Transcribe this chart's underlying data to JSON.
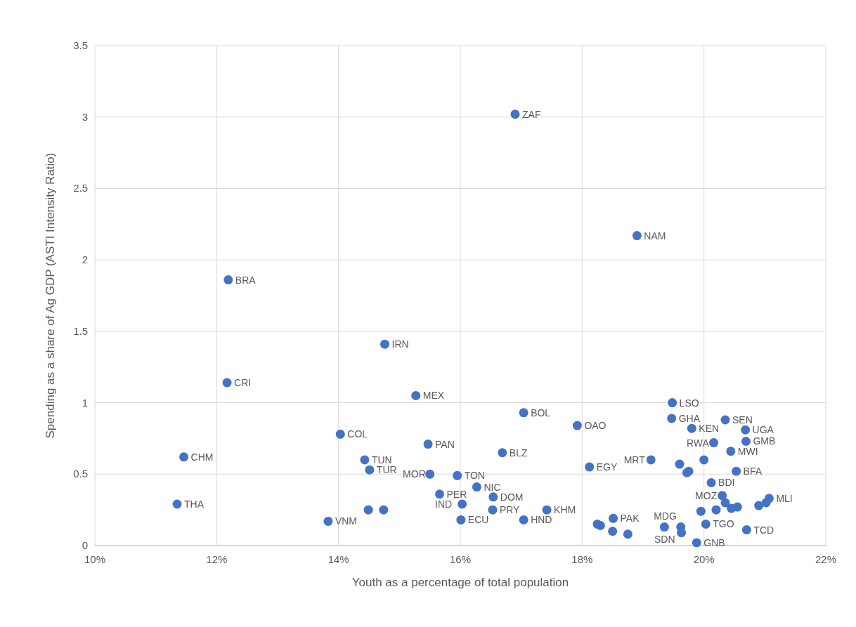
{
  "chart_data": {
    "type": "scatter",
    "xlabel": "Youth as a percentage of total population",
    "ylabel": "Spending as a share of Ag GDP (ASTI Intensity Ratio)",
    "xlim": [
      10,
      22
    ],
    "xticks": [
      {
        "value": 10,
        "label": "10%"
      },
      {
        "value": 12,
        "label": "12%"
      },
      {
        "value": 14,
        "label": "14%"
      },
      {
        "value": 16,
        "label": "16%"
      },
      {
        "value": 18,
        "label": "18%"
      },
      {
        "value": 20,
        "label": "20%"
      },
      {
        "value": 22,
        "label": "22%"
      }
    ],
    "ylim": [
      0,
      3.5
    ],
    "yticks": [
      0,
      0.5,
      1,
      1.5,
      2,
      2.5,
      3,
      3.5
    ],
    "grid": true,
    "marker": "circle",
    "series": [
      {
        "color": "#4472c4",
        "x": [
          16.9,
          18.9,
          12.19,
          14.76,
          12.17,
          15.27,
          19.48,
          17.04,
          17.92,
          19.47,
          20.35,
          19.8,
          20.68,
          14.03,
          20.16,
          20.69,
          20.44,
          15.47,
          16.69,
          11.46,
          14.43,
          19.13,
          18.12,
          14.51,
          20.53,
          15.5,
          15.95,
          20.12,
          16.27,
          15.66,
          16.54,
          20.3,
          21.07,
          11.35,
          16.03,
          16.53,
          17.42,
          14.49,
          14.74,
          17.04,
          16.01,
          13.83,
          18.51,
          20.03,
          20.7,
          19.62,
          19.63,
          19.88,
          19.6,
          20.0,
          19.75,
          19.72,
          19.95,
          20.2,
          20.45,
          20.55,
          20.9,
          21.02,
          20.35,
          18.25,
          18.3,
          18.5,
          18.75,
          19.35
        ],
        "values": [
          3.02,
          2.17,
          1.86,
          1.41,
          1.14,
          1.05,
          1.0,
          0.93,
          0.84,
          0.89,
          0.88,
          0.82,
          0.81,
          0.78,
          0.72,
          0.73,
          0.66,
          0.71,
          0.65,
          0.62,
          0.6,
          0.6,
          0.55,
          0.53,
          0.52,
          0.5,
          0.49,
          0.44,
          0.41,
          0.36,
          0.34,
          0.35,
          0.33,
          0.29,
          0.29,
          0.25,
          0.25,
          0.25,
          0.25,
          0.18,
          0.18,
          0.17,
          0.19,
          0.15,
          0.11,
          0.13,
          0.09,
          0.02,
          0.57,
          0.6,
          0.52,
          0.51,
          0.24,
          0.25,
          0.26,
          0.27,
          0.28,
          0.3,
          0.3,
          0.15,
          0.14,
          0.1,
          0.08,
          0.13
        ]
      }
    ],
    "annotations": [
      {
        "text": "ZAF",
        "x": 16.9,
        "y": 3.02
      },
      {
        "text": "NAM",
        "x": 18.9,
        "y": 2.17
      },
      {
        "text": "BRA",
        "x": 12.19,
        "y": 1.86
      },
      {
        "text": "IRN",
        "x": 14.76,
        "y": 1.41
      },
      {
        "text": "CRI",
        "x": 12.17,
        "y": 1.14
      },
      {
        "text": "MEX",
        "x": 15.27,
        "y": 1.05
      },
      {
        "text": "LSO",
        "x": 19.48,
        "y": 1.0
      },
      {
        "text": "BOL",
        "x": 17.04,
        "y": 0.93
      },
      {
        "text": "OAO",
        "x": 17.92,
        "y": 0.84
      },
      {
        "text": "GHA",
        "x": 19.47,
        "y": 0.89
      },
      {
        "text": "SEN",
        "x": 20.35,
        "y": 0.88
      },
      {
        "text": "KEN",
        "x": 19.8,
        "y": 0.82
      },
      {
        "text": "UGA",
        "x": 20.68,
        "y": 0.81
      },
      {
        "text": "COL",
        "x": 14.03,
        "y": 0.78
      },
      {
        "text": "RWA",
        "x": 20.16,
        "y": 0.72
      },
      {
        "text": "GMB",
        "x": 20.69,
        "y": 0.73
      },
      {
        "text": "MWI",
        "x": 20.44,
        "y": 0.66
      },
      {
        "text": "PAN",
        "x": 15.47,
        "y": 0.71
      },
      {
        "text": "BLZ",
        "x": 16.69,
        "y": 0.65
      },
      {
        "text": "CHM",
        "x": 11.46,
        "y": 0.62
      },
      {
        "text": "TUN",
        "x": 14.43,
        "y": 0.6
      },
      {
        "text": "MRT",
        "x": 19.13,
        "y": 0.6
      },
      {
        "text": "EGY",
        "x": 18.12,
        "y": 0.55
      },
      {
        "text": "TUR",
        "x": 14.51,
        "y": 0.53
      },
      {
        "text": "BFA",
        "x": 20.53,
        "y": 0.52
      },
      {
        "text": "MOR",
        "x": 15.5,
        "y": 0.5
      },
      {
        "text": "TON",
        "x": 15.95,
        "y": 0.49
      },
      {
        "text": "BDI",
        "x": 20.12,
        "y": 0.44
      },
      {
        "text": "NIC",
        "x": 16.27,
        "y": 0.41
      },
      {
        "text": "PER",
        "x": 15.66,
        "y": 0.36
      },
      {
        "text": "DOM",
        "x": 16.54,
        "y": 0.34
      },
      {
        "text": "MOZ",
        "x": 20.3,
        "y": 0.35
      },
      {
        "text": "MLI",
        "x": 21.07,
        "y": 0.33
      },
      {
        "text": "THA",
        "x": 11.35,
        "y": 0.29
      },
      {
        "text": "IND",
        "x": 16.03,
        "y": 0.29
      },
      {
        "text": "PRY",
        "x": 16.53,
        "y": 0.25
      },
      {
        "text": "KHM",
        "x": 17.42,
        "y": 0.25
      },
      {
        "text": "HND",
        "x": 17.04,
        "y": 0.18
      },
      {
        "text": "ECU",
        "x": 16.01,
        "y": 0.18
      },
      {
        "text": "VNM",
        "x": 13.83,
        "y": 0.17
      },
      {
        "text": "PAK",
        "x": 18.51,
        "y": 0.19
      },
      {
        "text": "TGO",
        "x": 20.03,
        "y": 0.15
      },
      {
        "text": "TCD",
        "x": 20.7,
        "y": 0.11
      },
      {
        "text": "MDG",
        "x": 19.62,
        "y": 0.13
      },
      {
        "text": "SDN",
        "x": 19.63,
        "y": 0.09
      },
      {
        "text": "GNB",
        "x": 19.88,
        "y": 0.02
      }
    ]
  }
}
